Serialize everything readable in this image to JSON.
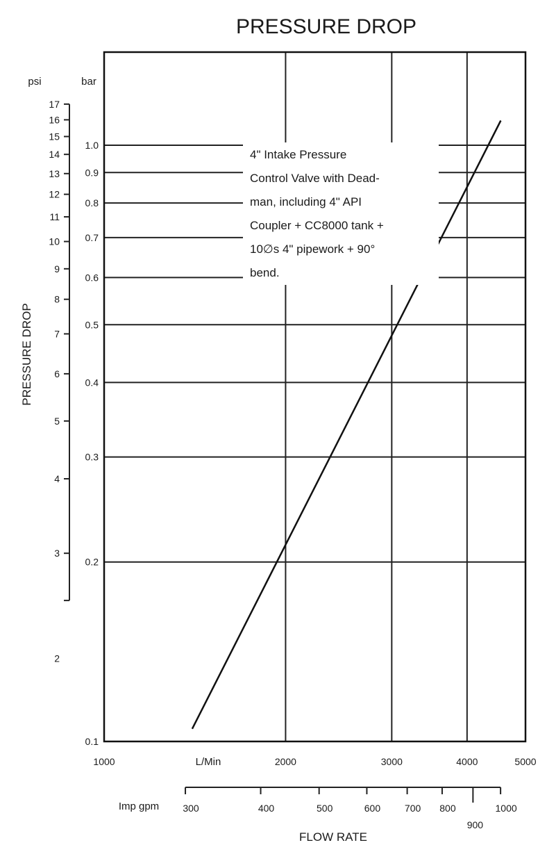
{
  "chart_data": {
    "type": "line",
    "title": "PRESSURE DROP",
    "ylabel": "PRESSURE DROP",
    "xlabel": "FLOW RATE",
    "x_scale": "log",
    "y_scale": "log",
    "xlim": [
      1000,
      5000
    ],
    "ylim": [
      0.1,
      1.2
    ],
    "x_unit_label": "L/Min",
    "x_ticks": [
      1000,
      2000,
      3000,
      4000,
      5000
    ],
    "x_tick_labels": [
      "1000",
      "2000",
      "3000",
      "4000",
      "5000"
    ],
    "y_unit_label": "bar",
    "y_ticks": [
      0.1,
      0.2,
      0.3,
      0.4,
      0.5,
      0.6,
      0.7,
      0.8,
      0.9,
      1.0
    ],
    "y_tick_labels": [
      "0.1",
      "0.2",
      "0.3",
      "0.4",
      "0.5",
      "0.6",
      "0.7",
      "0.8",
      "0.9",
      "1.0"
    ],
    "psi_unit_label": "psi",
    "psi_ticks": [
      2,
      3,
      4,
      5,
      6,
      7,
      8,
      9,
      10,
      11,
      12,
      13,
      14,
      15,
      16,
      17
    ],
    "psi_tick_labels": [
      "2",
      "3",
      "4",
      "5",
      "6",
      "7",
      "8",
      "9",
      "10",
      "11",
      "12",
      "13",
      "14",
      "15",
      "16",
      "17"
    ],
    "gpm_unit_label": "Imp gpm",
    "gpm_ticks": [
      300,
      400,
      500,
      600,
      700,
      800,
      900,
      1000
    ],
    "gpm_tick_labels": [
      "300",
      "400",
      "500",
      "600",
      "700",
      "800",
      "900",
      "1000"
    ],
    "grid": true,
    "series": [
      {
        "x": [
          1400,
          4550
        ],
        "y": [
          0.105,
          1.1
        ]
      }
    ],
    "annotation": [
      "4\" Intake Pressure",
      "Control Valve with Dead-",
      "man, including 4\" API",
      "Coupler + CC8000 tank +",
      "10∅s 4\" pipework + 90°",
      "bend."
    ]
  }
}
